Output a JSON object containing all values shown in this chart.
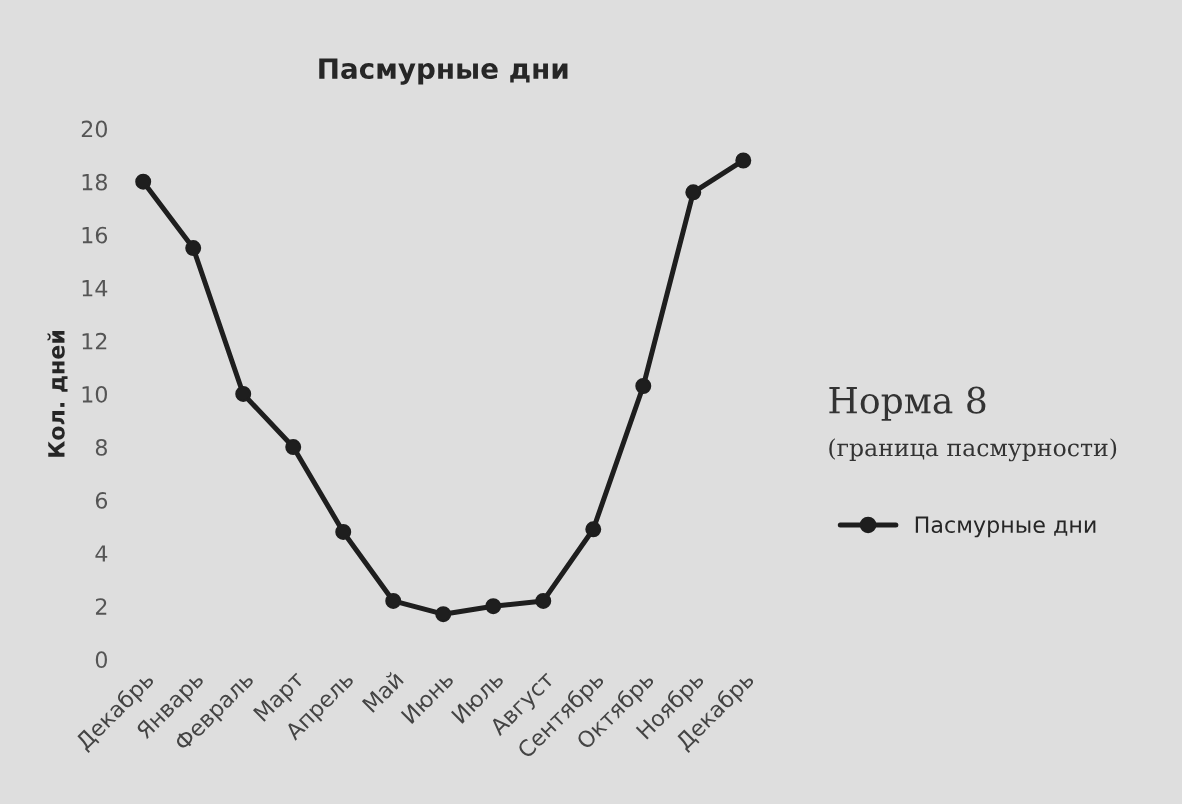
{
  "chart_data": {
    "type": "line",
    "title": "Пасмурные дни",
    "ylabel": "Кол. дней",
    "categories": [
      "Декабрь",
      "Январь",
      "Февраль",
      "Март",
      "Апрель",
      "Май",
      "Июнь",
      "Июль",
      "Август",
      "Сентябрь",
      "Октябрь",
      "Ноябрь",
      "Декабрь"
    ],
    "series": [
      {
        "name": "Пасмурные дни",
        "color": "#1e1e1e",
        "values": [
          18,
          15.5,
          10,
          8,
          4.8,
          2.2,
          1.7,
          2.0,
          2.2,
          4.9,
          10.3,
          17.6,
          18.8
        ]
      }
    ],
    "ylim": [
      0,
      20
    ],
    "yticks": [
      0,
      2,
      4,
      6,
      8,
      10,
      12,
      14,
      16,
      18,
      20
    ],
    "annotations": [
      "Норма 8",
      "(граница пасмурности)"
    ],
    "legend": "right",
    "marker": "circle",
    "line_style": "solid",
    "grid": false
  }
}
